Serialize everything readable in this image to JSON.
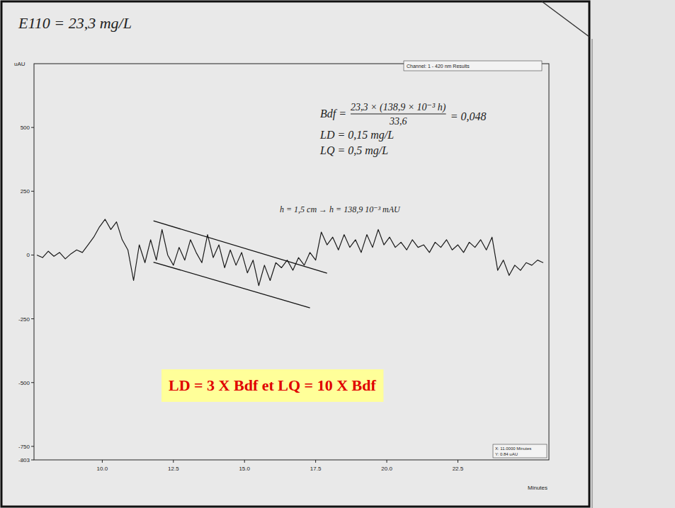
{
  "chart_data": {
    "type": "line",
    "header": "E110 = 23,3 mg/L",
    "y_label": "uAU",
    "x_label": "Minutes",
    "info_top": "Channel: 1 - 420 nm Results",
    "info_bottom": [
      "X: 11.0000 Minutes",
      "Y: 0.84 uAU"
    ],
    "color": "#1a1a1a",
    "xlim": [
      7.6,
      25.7
    ],
    "ylim": [
      -803,
      750
    ],
    "xticks": [
      {
        "value": 10,
        "label": "10.0"
      },
      {
        "value": 12.5,
        "label": "12.5"
      },
      {
        "value": 15,
        "label": "15.0"
      },
      {
        "value": 17.5,
        "label": "17.5"
      },
      {
        "value": 20,
        "label": "20.0"
      },
      {
        "value": 22.5,
        "label": "22.5"
      }
    ],
    "yticks": [
      500,
      250,
      0,
      -250,
      -500,
      -750,
      -803
    ],
    "x": [
      7.7,
      7.9,
      8.1,
      8.3,
      8.5,
      8.7,
      8.9,
      9.1,
      9.3,
      9.5,
      9.7,
      9.9,
      10.1,
      10.3,
      10.5,
      10.7,
      10.9,
      11.1,
      11.3,
      11.5,
      11.7,
      11.9,
      12.1,
      12.3,
      12.5,
      12.7,
      12.9,
      13.1,
      13.3,
      13.5,
      13.7,
      13.9,
      14.1,
      14.3,
      14.5,
      14.7,
      14.9,
      15.1,
      15.3,
      15.5,
      15.7,
      15.9,
      16.1,
      16.3,
      16.5,
      16.7,
      16.9,
      17.1,
      17.3,
      17.5,
      17.7,
      17.9,
      18.1,
      18.3,
      18.5,
      18.7,
      18.9,
      19.1,
      19.3,
      19.5,
      19.7,
      19.9,
      20.1,
      20.3,
      20.5,
      20.7,
      20.9,
      21.1,
      21.3,
      21.5,
      21.7,
      21.9,
      22.1,
      22.3,
      22.5,
      22.7,
      22.9,
      23.1,
      23.3,
      23.5,
      23.7,
      23.9,
      24.1,
      24.3,
      24.5,
      24.7,
      24.9,
      25.1,
      25.3,
      25.5
    ],
    "values": [
      0,
      -10,
      15,
      -5,
      10,
      -15,
      5,
      20,
      10,
      40,
      70,
      110,
      140,
      100,
      130,
      60,
      20,
      -100,
      40,
      -30,
      60,
      -20,
      100,
      0,
      -40,
      30,
      -20,
      60,
      10,
      -30,
      80,
      -10,
      40,
      -50,
      20,
      -40,
      10,
      -70,
      -20,
      -120,
      -40,
      -100,
      -30,
      -50,
      -20,
      -60,
      -10,
      -40,
      10,
      -20,
      90,
      40,
      70,
      20,
      80,
      30,
      60,
      10,
      80,
      30,
      100,
      40,
      70,
      30,
      50,
      20,
      60,
      30,
      40,
      10,
      50,
      30,
      60,
      20,
      40,
      10,
      50,
      30,
      60,
      20,
      70,
      -60,
      -20,
      -80,
      -40,
      -60,
      -30,
      -40,
      -20,
      -30
    ],
    "annotations": {
      "bdf": {
        "label": "Bdf =",
        "numerator": "23,3 × (138,9 × 10⁻³ h)",
        "denominator": "33,6",
        "result": "= 0,048"
      },
      "ld": "LD = 0,15 mg/L",
      "lq": "LQ = 0,5 mg/L",
      "noise": "h = 1,5 cm → h = 138,9 10⁻³ mAU",
      "box": "LD = 3 X Bdf et LQ = 10 X Bdf",
      "envelope": [
        {
          "x": [
            11.8,
            17.9
          ],
          "y": [
            134,
            -71
          ]
        },
        {
          "x": [
            11.8,
            17.3
          ],
          "y": [
            -28,
            -207
          ]
        }
      ]
    }
  }
}
